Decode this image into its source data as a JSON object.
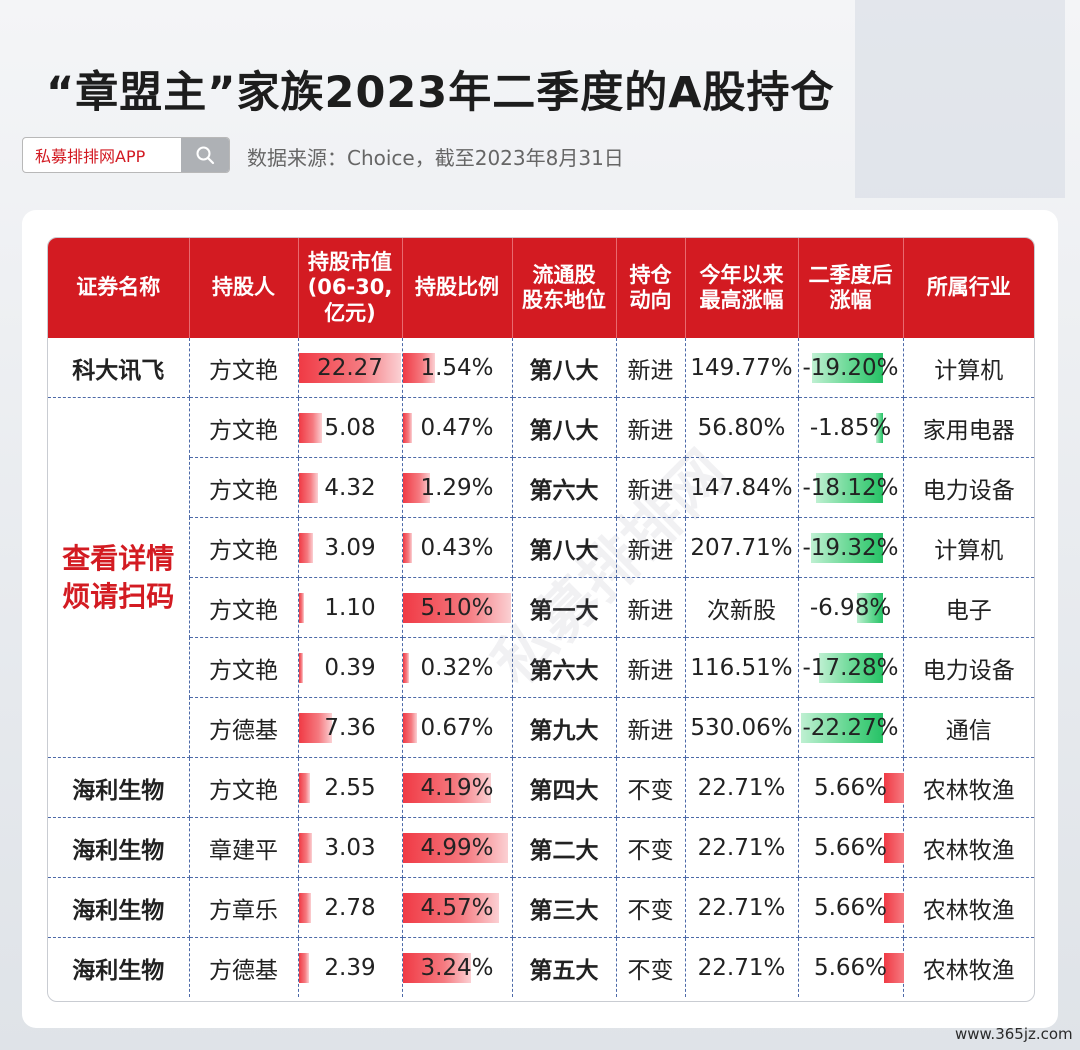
{
  "title": "“章盟主”家族2023年二季度的A股持仓",
  "search": {
    "text": "私募排排网APP"
  },
  "source": "数据来源：Choice，截至2023年8月31日",
  "footer": "www.365jz.com",
  "watermark": "私募排排网",
  "merged_note": [
    "查看详情",
    "烦请扫码"
  ],
  "colors": {
    "header": "#d31b22",
    "neg": "#26c266",
    "pos": "#f03a45"
  },
  "chart_data": {
    "type": "table",
    "columns": [
      "证券名称",
      "持股人",
      "持股市值(06-30,亿元)",
      "持股比例",
      "流通股股东地位",
      "持仓动向",
      "今年以来最高涨幅",
      "二季度后涨幅",
      "所属行业"
    ],
    "column_labels": [
      [
        "证券名称"
      ],
      [
        "持股人"
      ],
      [
        "持股市值",
        "(06-30,",
        "亿元)"
      ],
      [
        "持股比例"
      ],
      [
        "流通股",
        "股东地位"
      ],
      [
        "持仓",
        "动向"
      ],
      [
        "今年以来",
        "最高涨幅"
      ],
      [
        "二季度后",
        "涨幅"
      ],
      [
        "所属行业"
      ]
    ],
    "rows": [
      {
        "name": "科大讯飞",
        "holder": "方文艳",
        "value": 22.27,
        "value_text": "22.27",
        "ratio": 1.54,
        "ratio_text": "1.54%",
        "rank": "第八大",
        "move": "新进",
        "max_gain": "149.77%",
        "after": -19.2,
        "after_text": "-19.20%",
        "industry": "计算机"
      },
      {
        "name": "",
        "holder": "方文艳",
        "value": 5.08,
        "value_text": "5.08",
        "ratio": 0.47,
        "ratio_text": "0.47%",
        "rank": "第八大",
        "move": "新进",
        "max_gain": "56.80%",
        "after": -1.85,
        "after_text": "-1.85%",
        "industry": "家用电器"
      },
      {
        "name": "",
        "holder": "方文艳",
        "value": 4.32,
        "value_text": "4.32",
        "ratio": 1.29,
        "ratio_text": "1.29%",
        "rank": "第六大",
        "move": "新进",
        "max_gain": "147.84%",
        "after": -18.12,
        "after_text": "-18.12%",
        "industry": "电力设备"
      },
      {
        "name": "",
        "holder": "方文艳",
        "value": 3.09,
        "value_text": "3.09",
        "ratio": 0.43,
        "ratio_text": "0.43%",
        "rank": "第八大",
        "move": "新进",
        "max_gain": "207.71%",
        "after": -19.32,
        "after_text": "-19.32%",
        "industry": "计算机"
      },
      {
        "name": "",
        "holder": "方文艳",
        "value": 1.1,
        "value_text": "1.10",
        "ratio": 5.1,
        "ratio_text": "5.10%",
        "rank": "第一大",
        "move": "新进",
        "max_gain": "次新股",
        "after": -6.98,
        "after_text": "-6.98%",
        "industry": "电子"
      },
      {
        "name": "",
        "holder": "方文艳",
        "value": 0.39,
        "value_text": "0.39",
        "ratio": 0.32,
        "ratio_text": "0.32%",
        "rank": "第六大",
        "move": "新进",
        "max_gain": "116.51%",
        "after": -17.28,
        "after_text": "-17.28%",
        "industry": "电力设备"
      },
      {
        "name": "",
        "holder": "方德基",
        "value": 7.36,
        "value_text": "7.36",
        "ratio": 0.67,
        "ratio_text": "0.67%",
        "rank": "第九大",
        "move": "新进",
        "max_gain": "530.06%",
        "after": -22.27,
        "after_text": "-22.27%",
        "industry": "通信"
      },
      {
        "name": "海利生物",
        "holder": "方文艳",
        "value": 2.55,
        "value_text": "2.55",
        "ratio": 4.19,
        "ratio_text": "4.19%",
        "rank": "第四大",
        "move": "不变",
        "max_gain": "22.71%",
        "after": 5.66,
        "after_text": "5.66%",
        "industry": "农林牧渔"
      },
      {
        "name": "海利生物",
        "holder": "章建平",
        "value": 3.03,
        "value_text": "3.03",
        "ratio": 4.99,
        "ratio_text": "4.99%",
        "rank": "第二大",
        "move": "不变",
        "max_gain": "22.71%",
        "after": 5.66,
        "after_text": "5.66%",
        "industry": "农林牧渔"
      },
      {
        "name": "海利生物",
        "holder": "方章乐",
        "value": 2.78,
        "value_text": "2.78",
        "ratio": 4.57,
        "ratio_text": "4.57%",
        "rank": "第三大",
        "move": "不变",
        "max_gain": "22.71%",
        "after": 5.66,
        "after_text": "5.66%",
        "industry": "农林牧渔"
      },
      {
        "name": "海利生物",
        "holder": "方德基",
        "value": 2.39,
        "value_text": "2.39",
        "ratio": 3.24,
        "ratio_text": "3.24%",
        "rank": "第五大",
        "move": "不变",
        "max_gain": "22.71%",
        "after": 5.66,
        "after_text": "5.66%",
        "industry": "农林牧渔"
      }
    ]
  }
}
